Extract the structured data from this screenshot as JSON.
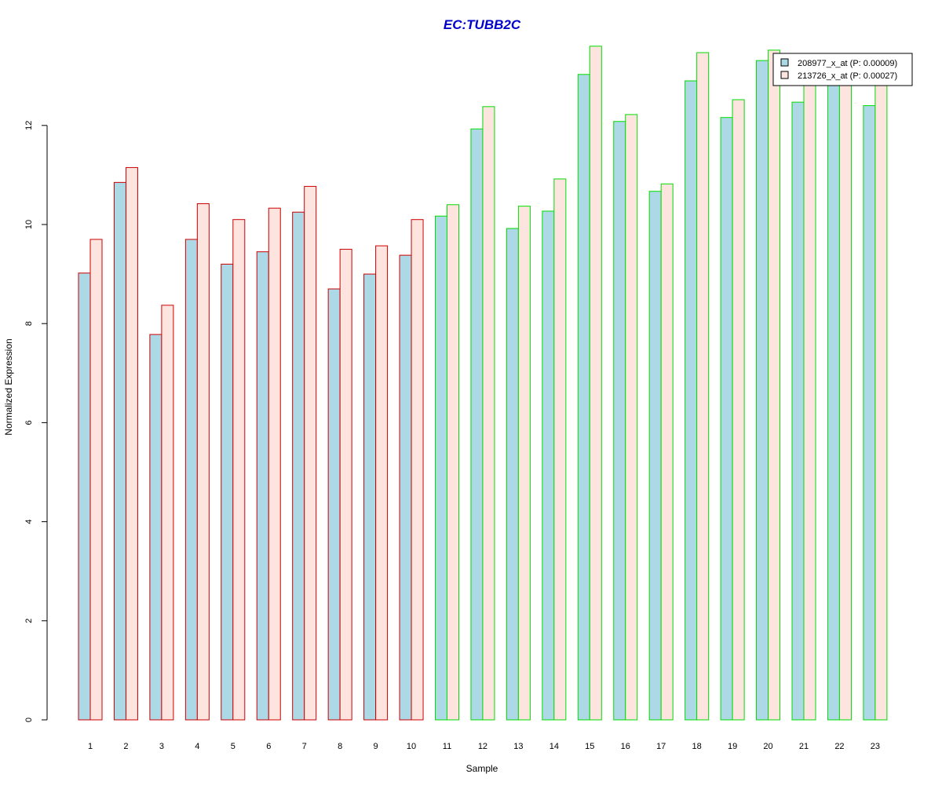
{
  "chart_data": {
    "type": "bar",
    "title": "EC:TUBB2C",
    "xlabel": "Sample",
    "ylabel": "Normalized Expression",
    "ylim": [
      0,
      13.6
    ],
    "yticks": [
      0,
      2,
      4,
      6,
      8,
      10,
      12
    ],
    "categories": [
      "1",
      "2",
      "3",
      "4",
      "5",
      "6",
      "7",
      "8",
      "9",
      "10",
      "11",
      "12",
      "13",
      "14",
      "15",
      "16",
      "17",
      "18",
      "19",
      "20",
      "21",
      "22",
      "23"
    ],
    "series": [
      {
        "name": "208977_x_at (P: 0.00009)",
        "color": "#add8e6",
        "values": [
          9.02,
          10.85,
          7.78,
          9.7,
          9.2,
          9.45,
          10.25,
          8.7,
          9.0,
          9.38,
          10.17,
          11.93,
          9.92,
          10.27,
          13.03,
          12.08,
          10.67,
          12.9,
          12.16,
          13.31,
          12.47,
          12.85,
          12.4
        ]
      },
      {
        "name": "213726_x_at (P: 0.00027)",
        "color": "#fde4de",
        "values": [
          9.7,
          11.15,
          8.37,
          10.42,
          10.1,
          10.33,
          10.77,
          9.5,
          9.57,
          10.1,
          10.4,
          12.38,
          10.37,
          10.92,
          13.6,
          12.22,
          10.82,
          13.47,
          12.52,
          13.52,
          12.88,
          12.9,
          12.87
        ]
      }
    ],
    "group_colors": [
      "#cc0000",
      "#cc0000",
      "#cc0000",
      "#cc0000",
      "#cc0000",
      "#cc0000",
      "#cc0000",
      "#cc0000",
      "#cc0000",
      "#cc0000",
      "#00dd00",
      "#00dd00",
      "#00dd00",
      "#00dd00",
      "#00dd00",
      "#00dd00",
      "#00dd00",
      "#00dd00",
      "#00dd00",
      "#00dd00",
      "#00dd00",
      "#00dd00",
      "#00dd00"
    ],
    "title_color": "#0000cc",
    "legend_position": "top-right",
    "grid": false
  }
}
